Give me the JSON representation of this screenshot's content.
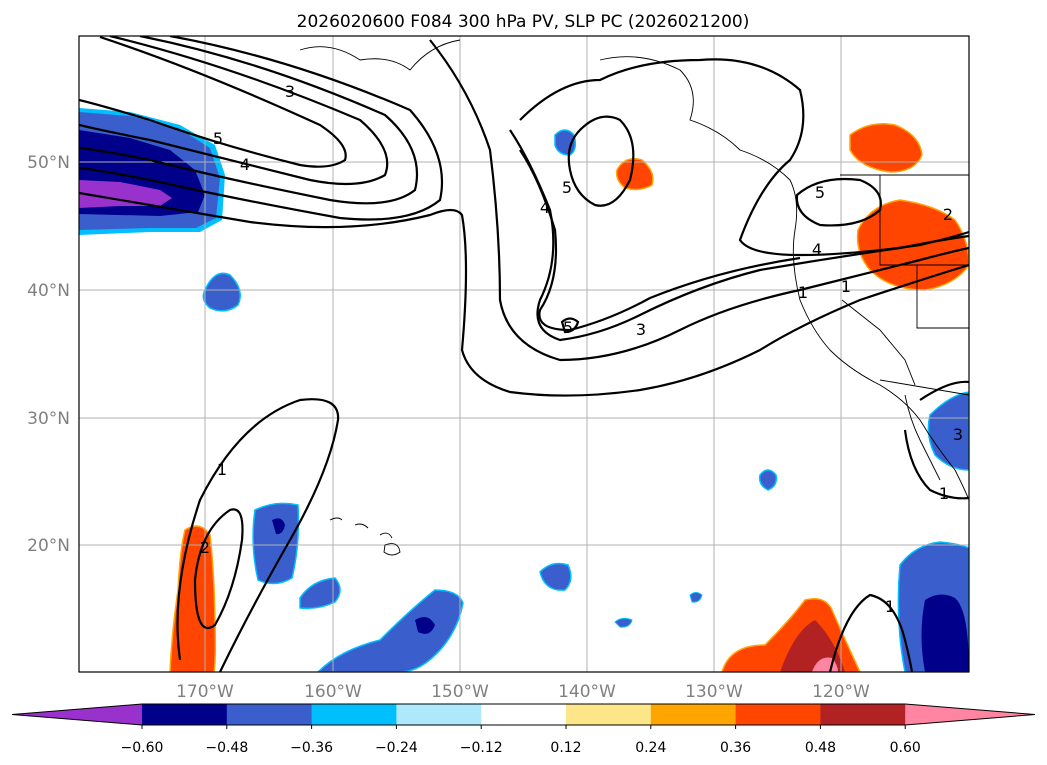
{
  "title": "2026020600 F084 300 hPa PV, SLP PC (2026021200)",
  "x_ticks": [
    "170°W",
    "160°W",
    "150°W",
    "140°W",
    "130°W",
    "120°W"
  ],
  "y_ticks": [
    "50°N",
    "40°N",
    "30°N",
    "20°N"
  ],
  "colorbar": {
    "levels": [
      "−0.60",
      "−0.48",
      "−0.36",
      "−0.24",
      "−0.12",
      "0.12",
      "0.24",
      "0.36",
      "0.48",
      "0.60"
    ],
    "colors": [
      "#9932cc",
      "#00008b",
      "#3a5fcd",
      "#00bfff",
      "#ade8fd",
      "#ffffff",
      "#fde68a",
      "#ffa500",
      "#ff4500",
      "#b22222",
      "#ff85a2"
    ]
  },
  "contour_labels": [
    "3",
    "5",
    "4",
    "5",
    "4",
    "5",
    "3",
    "5",
    "2",
    "4",
    "1",
    "1",
    "2",
    "1",
    "3",
    "1",
    "1"
  ],
  "chart_data": {
    "type": "map",
    "map_extent": {
      "lon": [
        -180,
        -110
      ],
      "lat": [
        10,
        60
      ]
    },
    "grid": true,
    "fill_field": "300 hPa PV",
    "contour_field": "SLP PC",
    "fill_levels": [
      -0.6,
      -0.48,
      -0.36,
      -0.24,
      -0.12,
      0.12,
      0.24,
      0.36,
      0.48,
      0.6
    ],
    "contour_levels": [
      1,
      2,
      3,
      4,
      5
    ]
  }
}
